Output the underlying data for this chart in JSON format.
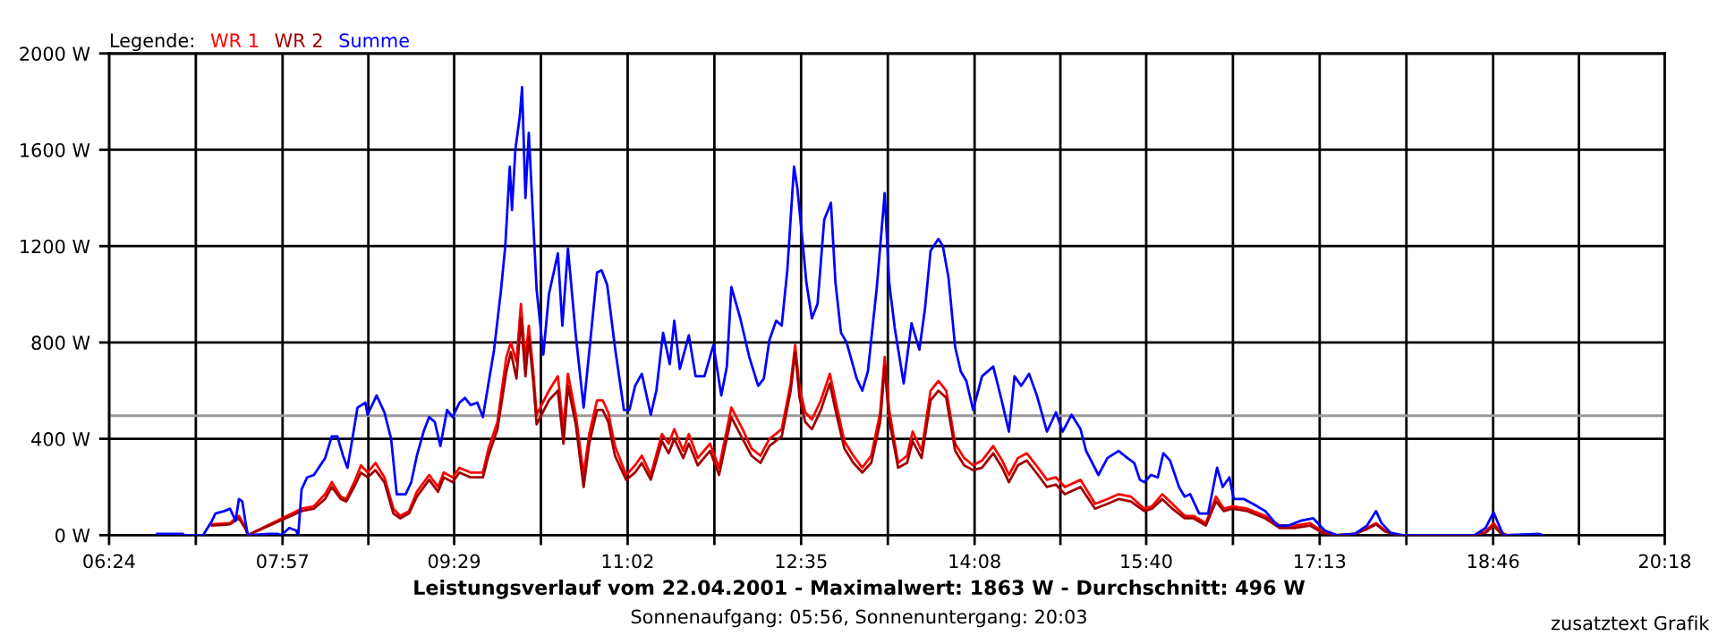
{
  "chart_data": {
    "type": "line",
    "title": "Leistungsverlauf vom 22.04.2001 - Maximalwert: 1863 W - Durchschnitt: 496 W",
    "subtitle": "Sonnenaufgang: 05:56, Sonnenuntergang: 20:03",
    "legend_title": "Legende:",
    "annotations": [
      "zusatztext Grafik"
    ],
    "xlim": [
      6.4,
      20.3
    ],
    "xticks": [
      {
        "value": 6.4,
        "label": "06:24"
      },
      {
        "value": 7.175,
        "label": null
      },
      {
        "value": 7.95,
        "label": "07:57"
      },
      {
        "value": 8.7167,
        "label": null
      },
      {
        "value": 9.4833,
        "label": "09:29"
      },
      {
        "value": 10.2583,
        "label": null
      },
      {
        "value": 11.0333,
        "label": "11:02"
      },
      {
        "value": 11.8083,
        "label": null
      },
      {
        "value": 12.5833,
        "label": "12:35"
      },
      {
        "value": 13.3583,
        "label": null
      },
      {
        "value": 14.1333,
        "label": "14:08"
      },
      {
        "value": 14.9,
        "label": null
      },
      {
        "value": 15.6667,
        "label": "15:40"
      },
      {
        "value": 16.4417,
        "label": null
      },
      {
        "value": 17.2167,
        "label": "17:13"
      },
      {
        "value": 17.9917,
        "label": null
      },
      {
        "value": 18.7667,
        "label": "18:46"
      },
      {
        "value": 19.5333,
        "label": null
      },
      {
        "value": 20.3,
        "label": "20:18"
      }
    ],
    "ylim": [
      0,
      2000
    ],
    "yticks": [
      {
        "value": 0,
        "label": "0 W"
      },
      {
        "value": 400,
        "label": "400 W"
      },
      {
        "value": 800,
        "label": "800 W"
      },
      {
        "value": 1200,
        "label": "1200 W"
      },
      {
        "value": 1600,
        "label": "1600 W"
      },
      {
        "value": 2000,
        "label": "2000 W"
      }
    ],
    "grid": true,
    "legend": "top left",
    "marker": "none",
    "line_style": "solid",
    "ref_lines": [
      {
        "axis": "y",
        "value": 496,
        "color": "#999999"
      }
    ],
    "series": [
      {
        "name": "WR 1",
        "color": "#ff0000",
        "x": [
          7.32,
          7.48,
          7.56,
          7.62,
          7.64,
          8.12,
          8.23,
          8.33,
          8.39,
          8.47,
          8.52,
          8.6,
          8.65,
          8.71,
          8.78,
          8.86,
          8.94,
          9.0,
          9.08,
          9.15,
          9.26,
          9.34,
          9.39,
          9.47,
          9.53,
          9.63,
          9.74,
          9.79,
          9.87,
          9.95,
          9.99,
          10.04,
          10.08,
          10.12,
          10.15,
          10.19,
          10.22,
          10.33,
          10.41,
          10.46,
          10.5,
          10.57,
          10.64,
          10.69,
          10.76,
          10.81,
          10.86,
          10.92,
          11.02,
          11.1,
          11.16,
          11.24,
          11.34,
          11.4,
          11.45,
          11.53,
          11.58,
          11.66,
          11.77,
          11.85,
          11.96,
          12.06,
          12.14,
          12.22,
          12.3,
          12.41,
          12.49,
          12.53,
          12.57,
          12.62,
          12.68,
          12.76,
          12.84,
          12.89,
          12.97,
          13.05,
          13.13,
          13.21,
          13.29,
          13.33,
          13.37,
          13.45,
          13.53,
          13.58,
          13.66,
          13.74,
          13.81,
          13.88,
          13.96,
          14.04,
          14.12,
          14.2,
          14.3,
          14.38,
          14.44,
          14.52,
          14.6,
          14.7,
          14.78,
          14.86,
          14.94,
          15.08,
          15.21,
          15.32,
          15.42,
          15.53,
          15.65,
          15.72,
          15.81,
          15.9,
          16.01,
          16.09,
          16.2,
          16.29,
          16.36,
          16.44,
          16.57,
          16.73,
          16.86,
          17.0,
          17.13,
          17.26,
          17.37,
          17.53,
          17.64,
          17.72,
          17.8,
          17.9,
          18.6,
          18.7,
          18.77,
          18.84,
          18.89
        ],
        "values": [
          45,
          50,
          80,
          30,
          0,
          110,
          120,
          170,
          220,
          160,
          150,
          230,
          290,
          260,
          300,
          240,
          110,
          80,
          100,
          180,
          250,
          200,
          260,
          240,
          280,
          260,
          260,
          360,
          470,
          740,
          800,
          720,
          960,
          720,
          870,
          680,
          500,
          600,
          660,
          440,
          670,
          500,
          250,
          420,
          560,
          560,
          510,
          370,
          250,
          290,
          330,
          250,
          420,
          380,
          440,
          350,
          420,
          320,
          380,
          280,
          530,
          440,
          360,
          330,
          400,
          440,
          630,
          790,
          610,
          510,
          480,
          560,
          670,
          560,
          390,
          330,
          280,
          330,
          510,
          740,
          520,
          300,
          330,
          430,
          350,
          600,
          640,
          600,
          380,
          320,
          290,
          310,
          370,
          310,
          250,
          320,
          340,
          280,
          230,
          240,
          200,
          230,
          130,
          150,
          170,
          160,
          110,
          120,
          170,
          130,
          80,
          80,
          50,
          160,
          110,
          120,
          110,
          80,
          40,
          40,
          50,
          10,
          0,
          5,
          30,
          50,
          20,
          0,
          0,
          15,
          50,
          10,
          0
        ]
      },
      {
        "name": "WR 2",
        "color": "#a00000",
        "x": [
          7.32,
          7.48,
          7.56,
          7.62,
          7.64,
          8.12,
          8.23,
          8.33,
          8.39,
          8.47,
          8.52,
          8.6,
          8.65,
          8.71,
          8.78,
          8.86,
          8.94,
          9.0,
          9.08,
          9.15,
          9.26,
          9.34,
          9.39,
          9.47,
          9.53,
          9.63,
          9.74,
          9.79,
          9.87,
          9.95,
          9.99,
          10.04,
          10.08,
          10.12,
          10.15,
          10.19,
          10.22,
          10.33,
          10.41,
          10.46,
          10.5,
          10.57,
          10.64,
          10.69,
          10.76,
          10.81,
          10.86,
          10.92,
          11.02,
          11.1,
          11.16,
          11.24,
          11.34,
          11.4,
          11.45,
          11.53,
          11.58,
          11.66,
          11.77,
          11.85,
          11.96,
          12.06,
          12.14,
          12.22,
          12.3,
          12.41,
          12.49,
          12.53,
          12.57,
          12.62,
          12.68,
          12.76,
          12.84,
          12.89,
          12.97,
          13.05,
          13.13,
          13.21,
          13.29,
          13.33,
          13.37,
          13.45,
          13.53,
          13.58,
          13.66,
          13.74,
          13.81,
          13.88,
          13.96,
          14.04,
          14.12,
          14.2,
          14.3,
          14.38,
          14.44,
          14.52,
          14.6,
          14.7,
          14.78,
          14.86,
          14.94,
          15.08,
          15.21,
          15.32,
          15.42,
          15.53,
          15.65,
          15.72,
          15.81,
          15.9,
          16.01,
          16.09,
          16.2,
          16.29,
          16.36,
          16.44,
          16.57,
          16.73,
          16.86,
          17.0,
          17.13,
          17.26,
          17.37,
          17.53,
          17.64,
          17.72,
          17.8,
          17.9,
          18.6,
          18.7,
          18.77,
          18.84,
          18.89
        ],
        "values": [
          40,
          45,
          70,
          25,
          0,
          100,
          110,
          150,
          200,
          150,
          140,
          210,
          260,
          240,
          270,
          220,
          90,
          70,
          90,
          160,
          230,
          180,
          240,
          220,
          260,
          240,
          240,
          330,
          440,
          680,
          760,
          650,
          900,
          660,
          820,
          640,
          460,
          560,
          600,
          380,
          620,
          460,
          200,
          380,
          520,
          520,
          470,
          330,
          230,
          260,
          300,
          230,
          390,
          340,
          400,
          320,
          380,
          290,
          350,
          250,
          490,
          400,
          330,
          300,
          370,
          410,
          600,
          760,
          570,
          470,
          440,
          520,
          630,
          520,
          360,
          300,
          260,
          300,
          470,
          700,
          480,
          280,
          300,
          390,
          320,
          560,
          600,
          570,
          350,
          290,
          270,
          280,
          340,
          280,
          220,
          290,
          310,
          250,
          200,
          210,
          170,
          200,
          110,
          130,
          150,
          140,
          100,
          110,
          150,
          110,
          70,
          70,
          40,
          140,
          100,
          110,
          100,
          70,
          30,
          30,
          40,
          5,
          0,
          5,
          25,
          45,
          15,
          0,
          0,
          10,
          40,
          5,
          0
        ]
      },
      {
        "name": "Summe",
        "color": "#0000ff",
        "x": [
          6.83,
          7.06,
          7.07,
          7.24,
          7.32,
          7.35,
          7.43,
          7.48,
          7.53,
          7.56,
          7.59,
          7.62,
          7.64,
          7.83,
          7.91,
          7.94,
          8.01,
          8.07,
          8.09,
          8.12,
          8.17,
          8.23,
          8.33,
          8.39,
          8.44,
          8.49,
          8.53,
          8.57,
          8.62,
          8.69,
          8.71,
          8.76,
          8.79,
          8.86,
          8.92,
          8.97,
          9.05,
          9.1,
          9.15,
          9.21,
          9.26,
          9.31,
          9.36,
          9.42,
          9.47,
          9.53,
          9.58,
          9.63,
          9.69,
          9.74,
          9.79,
          9.84,
          9.9,
          9.94,
          9.98,
          10.0,
          10.03,
          10.07,
          10.09,
          10.12,
          10.15,
          10.19,
          10.22,
          10.28,
          10.33,
          10.41,
          10.45,
          10.5,
          10.57,
          10.64,
          10.69,
          10.76,
          10.8,
          10.85,
          10.92,
          11.0,
          11.05,
          11.1,
          11.16,
          11.24,
          11.29,
          11.35,
          11.41,
          11.45,
          11.5,
          11.58,
          11.64,
          11.72,
          11.8,
          11.87,
          11.92,
          11.96,
          12.04,
          12.12,
          12.2,
          12.25,
          12.3,
          12.36,
          12.41,
          12.46,
          12.52,
          12.55,
          12.6,
          12.63,
          12.68,
          12.73,
          12.79,
          12.85,
          12.89,
          12.94,
          12.99,
          13.08,
          13.13,
          13.18,
          13.26,
          13.33,
          13.37,
          13.42,
          13.5,
          13.57,
          13.64,
          13.69,
          13.74,
          13.81,
          13.85,
          13.9,
          13.96,
          14.01,
          14.06,
          14.12,
          14.2,
          14.3,
          14.37,
          14.44,
          14.49,
          14.55,
          14.62,
          14.69,
          14.78,
          14.86,
          14.92,
          15.0,
          15.08,
          15.13,
          15.24,
          15.32,
          15.42,
          15.5,
          15.56,
          15.61,
          15.65,
          15.71,
          15.77,
          15.82,
          15.88,
          15.96,
          16.01,
          16.06,
          16.14,
          16.22,
          16.3,
          16.35,
          16.41,
          16.45,
          16.54,
          16.62,
          16.73,
          16.84,
          16.94,
          17.05,
          17.16,
          17.26,
          17.37,
          17.53,
          17.64,
          17.72,
          17.77,
          17.85,
          17.96,
          18.6,
          18.7,
          18.77,
          18.82,
          18.86,
          19.18,
          19.21
        ],
        "values": [
          5,
          5,
          0,
          0,
          60,
          90,
          100,
          110,
          60,
          150,
          140,
          50,
          0,
          5,
          5,
          0,
          30,
          20,
          0,
          190,
          240,
          250,
          320,
          410,
          410,
          330,
          280,
          390,
          530,
          550,
          500,
          550,
          580,
          510,
          400,
          170,
          170,
          220,
          330,
          430,
          490,
          470,
          370,
          520,
          490,
          550,
          570,
          540,
          550,
          490,
          630,
          770,
          1010,
          1200,
          1530,
          1350,
          1600,
          1740,
          1860,
          1400,
          1670,
          1300,
          1020,
          750,
          1000,
          1170,
          870,
          1190,
          830,
          530,
          760,
          1090,
          1100,
          1040,
          780,
          520,
          520,
          620,
          670,
          500,
          600,
          840,
          710,
          890,
          690,
          830,
          660,
          660,
          790,
          580,
          700,
          1030,
          900,
          740,
          620,
          650,
          810,
          890,
          870,
          1100,
          1530,
          1440,
          1200,
          1050,
          900,
          960,
          1310,
          1380,
          1050,
          840,
          800,
          650,
          600,
          680,
          1030,
          1420,
          1050,
          860,
          630,
          880,
          770,
          940,
          1180,
          1230,
          1200,
          1070,
          780,
          680,
          640,
          520,
          660,
          700,
          570,
          430,
          660,
          620,
          670,
          580,
          430,
          510,
          430,
          500,
          440,
          350,
          250,
          320,
          350,
          320,
          300,
          230,
          220,
          250,
          240,
          340,
          310,
          200,
          160,
          170,
          90,
          90,
          280,
          200,
          240,
          150,
          150,
          130,
          100,
          40,
          40,
          60,
          70,
          20,
          0,
          5,
          40,
          100,
          50,
          10,
          0,
          0,
          30,
          95,
          40,
          0,
          5,
          0
        ]
      }
    ]
  }
}
